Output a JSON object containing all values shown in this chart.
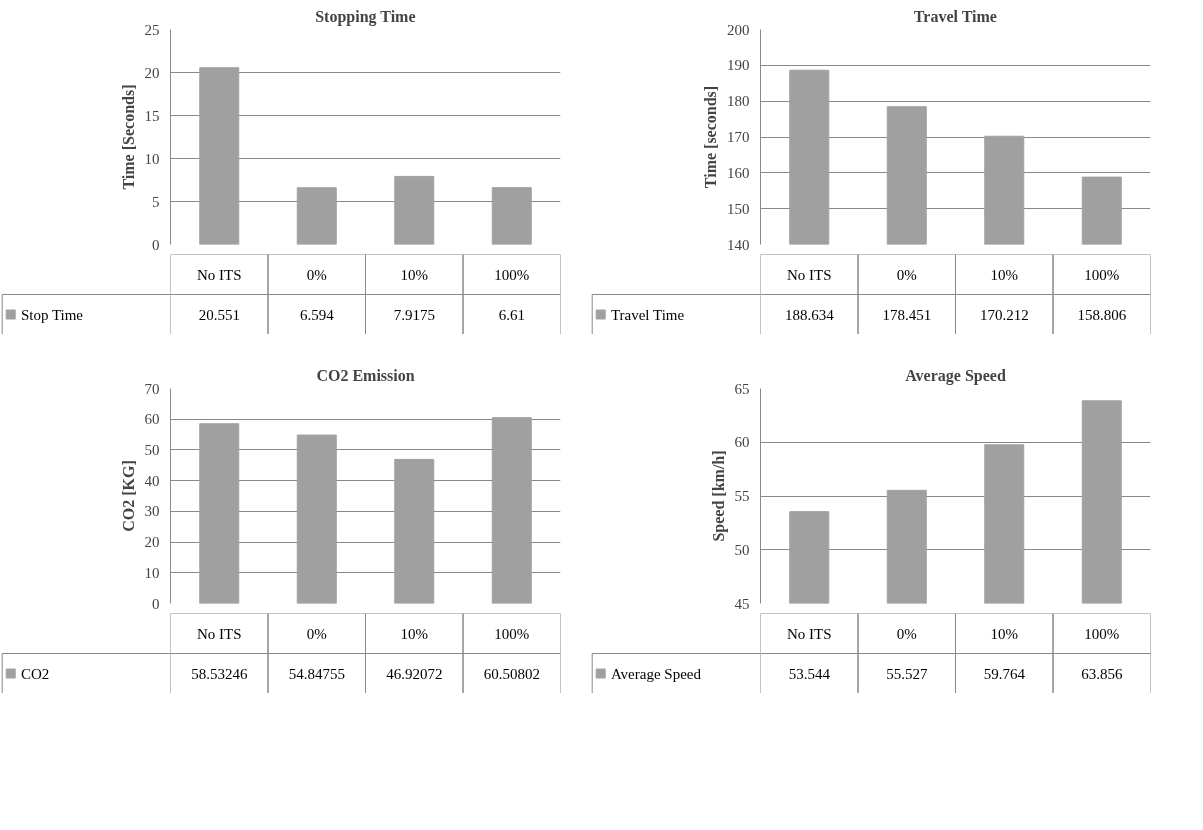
{
  "chart_data": [
    {
      "type": "bar",
      "title": "Stopping Time",
      "ylabel": "Time [Seconds]",
      "categories": [
        "No ITS",
        "0%",
        "10%",
        "100%"
      ],
      "series": [
        {
          "name": "Stop Time",
          "color": "#a0a0a0",
          "values": [
            20.551,
            6.594,
            7.9175,
            6.61
          ],
          "value_labels": [
            "20.551",
            "6.594",
            "7.9175",
            "6.61"
          ]
        }
      ],
      "ylim": [
        0,
        25
      ],
      "yticks": [
        0,
        5,
        10,
        15,
        20,
        25
      ],
      "grid": "y",
      "legend": "bottom"
    },
    {
      "type": "bar",
      "title": "Travel Time",
      "ylabel": "Time [seconds]",
      "categories": [
        "No ITS",
        "0%",
        "10%",
        "100%"
      ],
      "series": [
        {
          "name": "Travel Time",
          "color": "#a0a0a0",
          "values": [
            188.634,
            178.451,
            170.212,
            158.806
          ],
          "value_labels": [
            "188.634",
            "178.451",
            "170.212",
            "158.806"
          ]
        }
      ],
      "ylim": [
        140,
        200
      ],
      "yticks": [
        140,
        150,
        160,
        170,
        180,
        190,
        200
      ],
      "grid": "y",
      "legend": "bottom"
    },
    {
      "type": "bar",
      "title": "CO2 Emission",
      "ylabel": "CO2 [KG]",
      "categories": [
        "No ITS",
        "0%",
        "10%",
        "100%"
      ],
      "series": [
        {
          "name": "CO2",
          "color": "#a0a0a0",
          "values": [
            58.53246,
            54.84755,
            46.92072,
            60.50802
          ],
          "value_labels": [
            "58.53246",
            "54.84755",
            "46.92072",
            "60.50802"
          ]
        }
      ],
      "ylim": [
        0,
        70
      ],
      "yticks": [
        0,
        10,
        20,
        30,
        40,
        50,
        60,
        70
      ],
      "grid": "y",
      "legend": "bottom"
    },
    {
      "type": "bar",
      "title": "Average Speed",
      "ylabel": "Speed [km/h]",
      "categories": [
        "No ITS",
        "0%",
        "10%",
        "100%"
      ],
      "series": [
        {
          "name": "Average Speed",
          "color": "#a0a0a0",
          "values": [
            53.544,
            55.527,
            59.764,
            63.856
          ],
          "value_labels": [
            "53.544",
            "55.527",
            "59.764",
            "63.856"
          ]
        }
      ],
      "ylim": [
        45,
        65
      ],
      "yticks": [
        45,
        50,
        55,
        60,
        65
      ],
      "grid": "y",
      "legend": "bottom"
    }
  ]
}
